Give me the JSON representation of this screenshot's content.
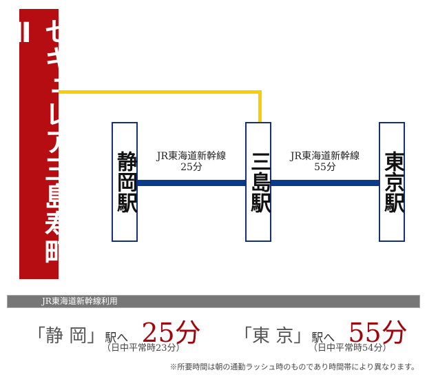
{
  "property": {
    "name": "セキュレア三島寿町Ⅱ",
    "color": "#b50d12"
  },
  "access_line_color": "#f5cf00",
  "rail_color": "#0a3a8a",
  "stations": [
    {
      "name": "静岡駅"
    },
    {
      "name": "三島駅"
    },
    {
      "name": "東京駅"
    }
  ],
  "segments": [
    {
      "line": "JR東海道新幹線",
      "time": "25分"
    },
    {
      "line": "JR東海道新幹線",
      "time": "55分"
    }
  ],
  "summary": {
    "header": "JR東海道新幹線利用",
    "items": [
      {
        "dest": "「静 岡」",
        "suffix": "駅へ",
        "time": "25分",
        "note": "（日中平常時23分）"
      },
      {
        "dest": "「東 京」",
        "suffix": "駅へ",
        "time": "55分",
        "note": "（日中平常時54分）"
      }
    ],
    "footnote": "※所要時間は朝の通勤ラッシュ時のものであり時間帯により異なります。"
  }
}
